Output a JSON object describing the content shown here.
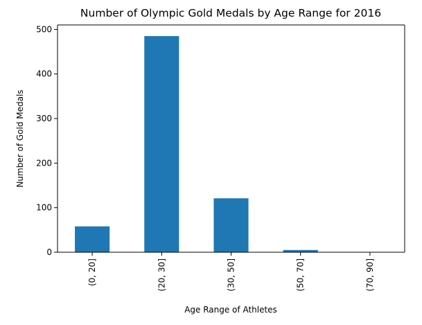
{
  "chart_data": {
    "type": "bar",
    "title": "Number of Olympic Gold Medals by Age Range for 2016",
    "xlabel": "Age Range of Athletes",
    "ylabel": "Number of Gold Medals",
    "categories": [
      "(0, 20]",
      "(20, 30]",
      "(30, 50]",
      "(50, 70]",
      "(70, 90]"
    ],
    "values": [
      58,
      485,
      121,
      5,
      0
    ],
    "ylim": [
      0,
      510
    ],
    "yticks": [
      0,
      100,
      200,
      300,
      400,
      500
    ],
    "grid": false,
    "legend": "none",
    "bar_color": "#1f77b4"
  }
}
